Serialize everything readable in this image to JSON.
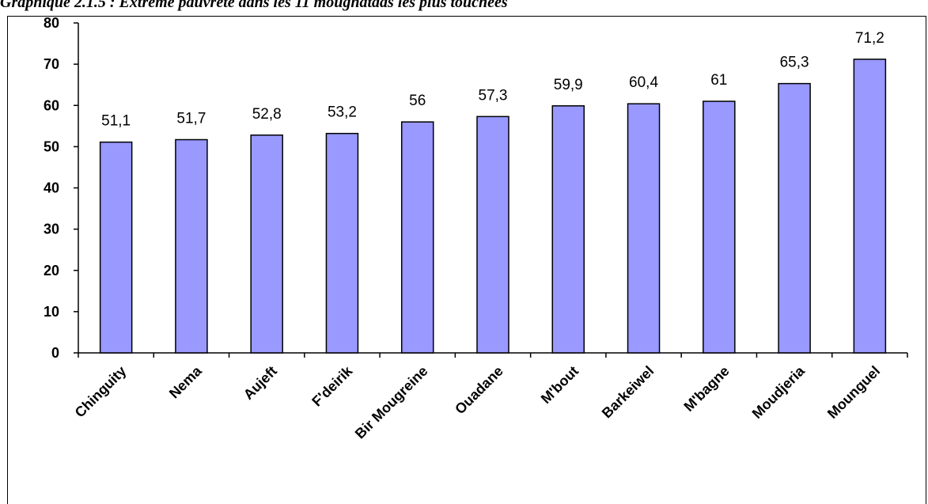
{
  "chart_data": {
    "type": "bar",
    "title": "Graphique 2.1.5 : Extrême pauvreté dans les 11 moughataas les plus touchées",
    "xlabel": "",
    "ylabel": "",
    "categories": [
      "Chinguity",
      "Nema",
      "Aujeft",
      "F'deirik",
      "Bir Mougreine",
      "Ouadane",
      "M'bout",
      "Barkeiwel",
      "M'bagne",
      "Moudjeria",
      "Mounguel"
    ],
    "values": [
      51.1,
      51.7,
      52.8,
      53.2,
      56,
      57.3,
      59.9,
      60.4,
      61,
      65.3,
      71.2
    ],
    "value_labels": [
      "51,1",
      "51,7",
      "52,8",
      "53,2",
      "56",
      "57,3",
      "59,9",
      "60,4",
      "61",
      "65,3",
      "71,2"
    ],
    "yticks": [
      "0",
      "10",
      "20",
      "30",
      "40",
      "50",
      "60",
      "70",
      "80"
    ],
    "ylim": [
      0,
      80
    ],
    "grid": false,
    "legend": "none",
    "bar_color": "#9999ff",
    "bar_edge_color": "#000000"
  }
}
